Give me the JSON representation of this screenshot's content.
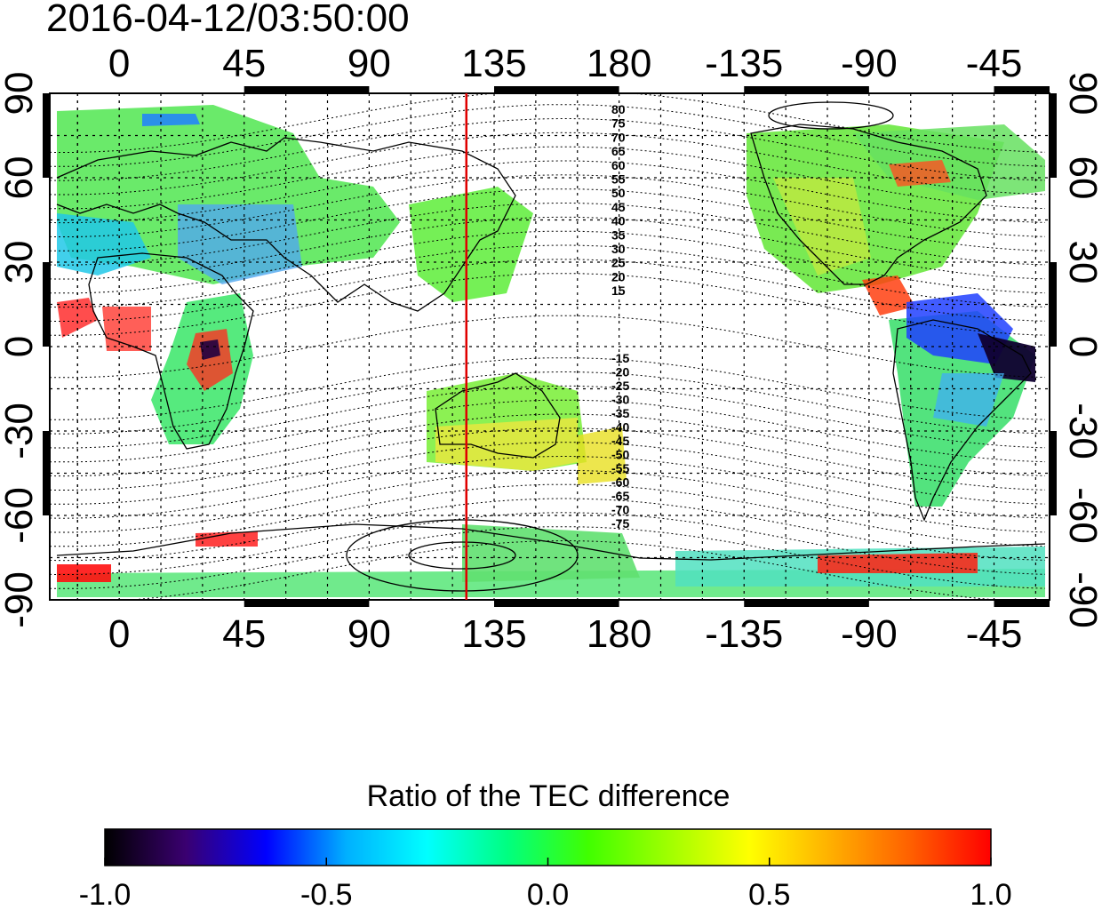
{
  "title": "2016-04-12/03:50:00",
  "map": {
    "lon_ticks": [
      "0",
      "45",
      "90",
      "135",
      "180",
      "-135",
      "-90",
      "-45"
    ],
    "lat_ticks": [
      "90",
      "60",
      "30",
      "0",
      "-30",
      "-60",
      "-90"
    ],
    "meridian_marker_lon": 125,
    "meridian_marker_color": "#e00000",
    "contour_labels_north": [
      "80",
      "75",
      "70",
      "65",
      "60",
      "55",
      "50",
      "45",
      "40",
      "35",
      "30",
      "25",
      "20",
      "15"
    ],
    "contour_labels_south": [
      "-15",
      "-20",
      "-25",
      "-30",
      "-35",
      "-40",
      "-45",
      "-50",
      "-55",
      "-60",
      "-65",
      "-70",
      "-75"
    ]
  },
  "colorbar": {
    "title": "Ratio of the TEC difference",
    "tick_labels": [
      "-1.0",
      "-0.5",
      "0.0",
      "0.5",
      "1.0"
    ],
    "min": -1.0,
    "max": 1.0,
    "colors": [
      "#000000",
      "#3a0070",
      "#0000ff",
      "#00b0ff",
      "#00ffff",
      "#00ff80",
      "#40ff00",
      "#a0ff00",
      "#ffff00",
      "#ffb000",
      "#ff6000",
      "#ff0000"
    ]
  }
}
